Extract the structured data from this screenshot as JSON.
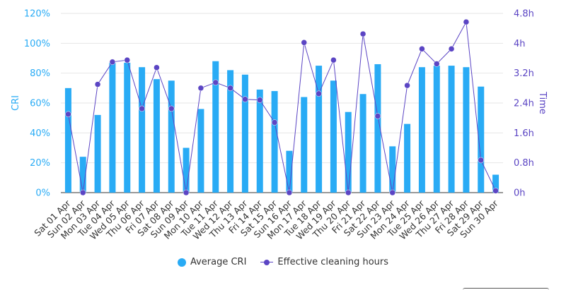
{
  "chart_data": {
    "type": "bar",
    "categories": [
      "Sat 01 Apr",
      "Sun 02 Apr",
      "Mon 03 Apr",
      "Tue 04 Apr",
      "Wed 05 Apr",
      "Thu 06 Apr",
      "Fri 07 Apr",
      "Sat 08 Apr",
      "Sun 09 Apr",
      "Mon 10 Apr",
      "Tue 11 Apr",
      "Wed 12 Apr",
      "Thu 13 Apr",
      "Fri 14 Apr",
      "Sat 15 Apr",
      "Sun 16 Apr",
      "Mon 17 Apr",
      "Tue 18 Apr",
      "Wed 19 Apr",
      "Thu 20 Apr",
      "Fri 21 Apr",
      "Sat 22 Apr",
      "Sun 23 Apr",
      "Mon 24 Apr",
      "Tue 25 Apr",
      "Wed 26 Apr",
      "Thu 27 Apr",
      "Fri 28 Apr",
      "Sat 29 Apr",
      "Sun 30 Apr"
    ],
    "series": [
      {
        "name": "Average CRI",
        "type": "bar",
        "axis": "left",
        "color": "#29abf5",
        "values": [
          70,
          24,
          52,
          87,
          87,
          84,
          76,
          75,
          30,
          56,
          88,
          82,
          79,
          69,
          68,
          28,
          64,
          85,
          75,
          54,
          66,
          86,
          31,
          46,
          84,
          85,
          85,
          84,
          71,
          12
        ]
      },
      {
        "name": "Effective cleaning hours",
        "type": "line",
        "axis": "right",
        "color": "#5b45c4",
        "values": [
          2.1,
          0.0,
          2.9,
          3.5,
          3.55,
          2.25,
          3.35,
          2.25,
          0.0,
          2.8,
          2.95,
          2.8,
          2.5,
          2.48,
          1.88,
          0.0,
          4.02,
          2.65,
          3.55,
          0.0,
          4.25,
          2.05,
          0.0,
          2.87,
          3.85,
          3.45,
          3.85,
          4.57,
          0.87,
          0.05
        ]
      }
    ],
    "axes": {
      "left": {
        "title": "CRI",
        "ticks": [
          "0%",
          "20%",
          "40%",
          "60%",
          "80%",
          "100%",
          "120%"
        ],
        "ylim": [
          0,
          120
        ]
      },
      "right": {
        "title": "Time",
        "ticks": [
          "0h",
          "0.8h",
          "1.6h",
          "2.4h",
          "3.2h",
          "4h",
          "4.8h"
        ],
        "ylim": [
          0,
          4.8
        ]
      }
    },
    "grid": true,
    "legend_position": "bottom"
  }
}
